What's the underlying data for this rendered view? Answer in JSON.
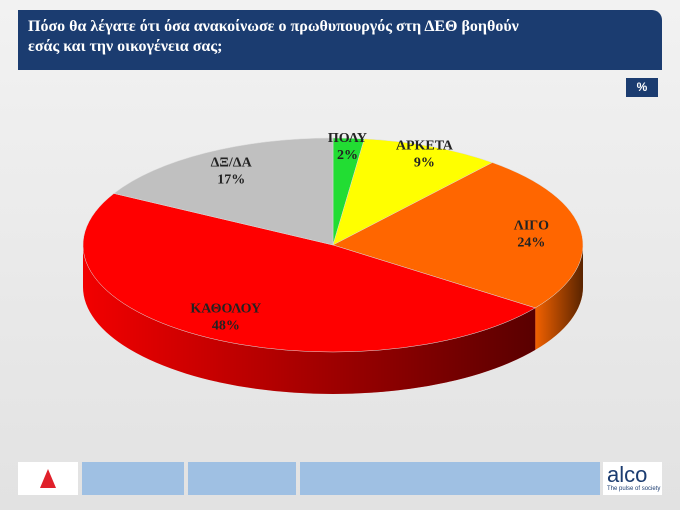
{
  "chart_data": {
    "type": "pie",
    "title": "Πόσο θα λέγατε ότι όσα ανακοίνωσε ο πρωθυπουργός στη ΔΕΘ βοηθούν εσάς και την οικογένεια σας;",
    "unit_label": "%",
    "categories": [
      "ΠΟΛΥ",
      "ΑΡΚΕΤΑ",
      "ΛΙΓΟ",
      "ΚΑΘΟΛΟΥ",
      "ΔΞ/ΔΑ"
    ],
    "values": [
      2,
      9,
      24,
      48,
      17
    ],
    "value_labels": [
      "2%",
      "9%",
      "24%",
      "48%",
      "17%"
    ],
    "colors": [
      "#22dd33",
      "#ffff00",
      "#ff6600",
      "#ff0000",
      "#c0c0c0"
    ]
  },
  "footer": {
    "brand": "alco",
    "tagline": "The pulse of society"
  }
}
